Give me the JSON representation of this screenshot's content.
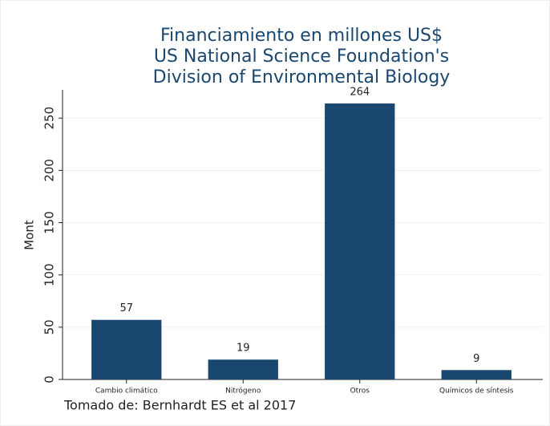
{
  "chart_data": {
    "type": "bar",
    "title": [
      "Financiamiento en millones US$",
      "US National Science Foundation's",
      "Division of Environmental Biology"
    ],
    "y_label": "Mont",
    "note": "Tomado de: Bernhardt ES  et al 2017",
    "categories": [
      "Cambio climático",
      "Nitrógeno",
      "Otros",
      "Químicos de síntesis"
    ],
    "values": [
      57,
      19,
      264,
      9
    ],
    "color": "#1a476f",
    "ylim": [
      0,
      277
    ],
    "yticks": [
      0,
      50,
      100,
      150,
      200,
      250
    ],
    "grid": true
  }
}
